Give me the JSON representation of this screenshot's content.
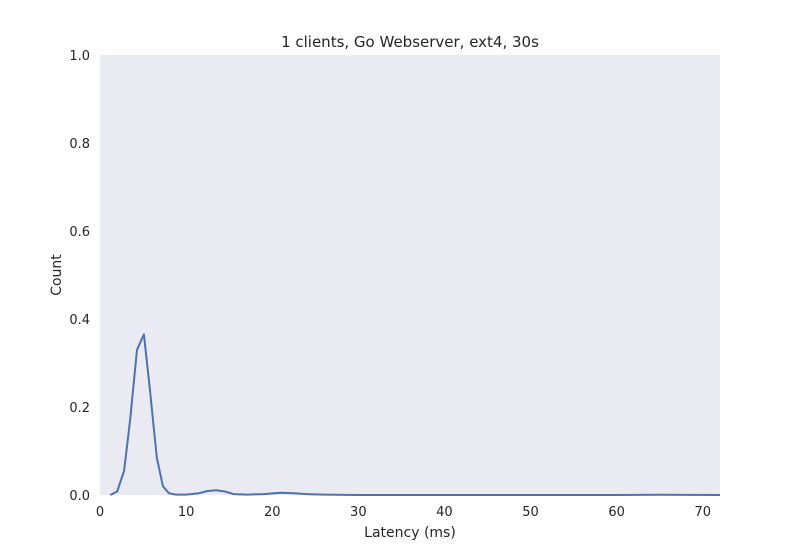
{
  "chart_data": {
    "type": "line",
    "title": "1 clients, Go Webserver, ext4, 30s",
    "xlabel": "Latency (ms)",
    "ylabel": "Count",
    "xlim": [
      0,
      72
    ],
    "ylim": [
      0,
      1.0
    ],
    "x_ticks": [
      0,
      10,
      20,
      30,
      40,
      50,
      60,
      70
    ],
    "y_ticks": [
      "0.0",
      "0.2",
      "0.4",
      "0.6",
      "0.8",
      "1.0"
    ],
    "grid": false,
    "background": "#eaeaf2",
    "series": [
      {
        "color": "#4c72b0",
        "x": [
          1.2,
          2.0,
          2.8,
          3.5,
          4.3,
          5.1,
          5.8,
          6.6,
          7.3,
          8.0,
          8.8,
          10.0,
          11.5,
          12.5,
          13.5,
          14.5,
          15.5,
          17.0,
          19.0,
          21.0,
          22.5,
          24.0,
          26.0,
          30.0,
          40.0,
          50.0,
          60.0,
          65.0,
          72.0
        ],
        "y": [
          0.0,
          0.008,
          0.055,
          0.17,
          0.33,
          0.365,
          0.24,
          0.085,
          0.02,
          0.004,
          0.001,
          0.001,
          0.004,
          0.009,
          0.011,
          0.008,
          0.002,
          0.001,
          0.002,
          0.005,
          0.004,
          0.002,
          0.001,
          0.0,
          0.0,
          0.0,
          0.0,
          0.0005,
          0.0
        ]
      }
    ]
  }
}
